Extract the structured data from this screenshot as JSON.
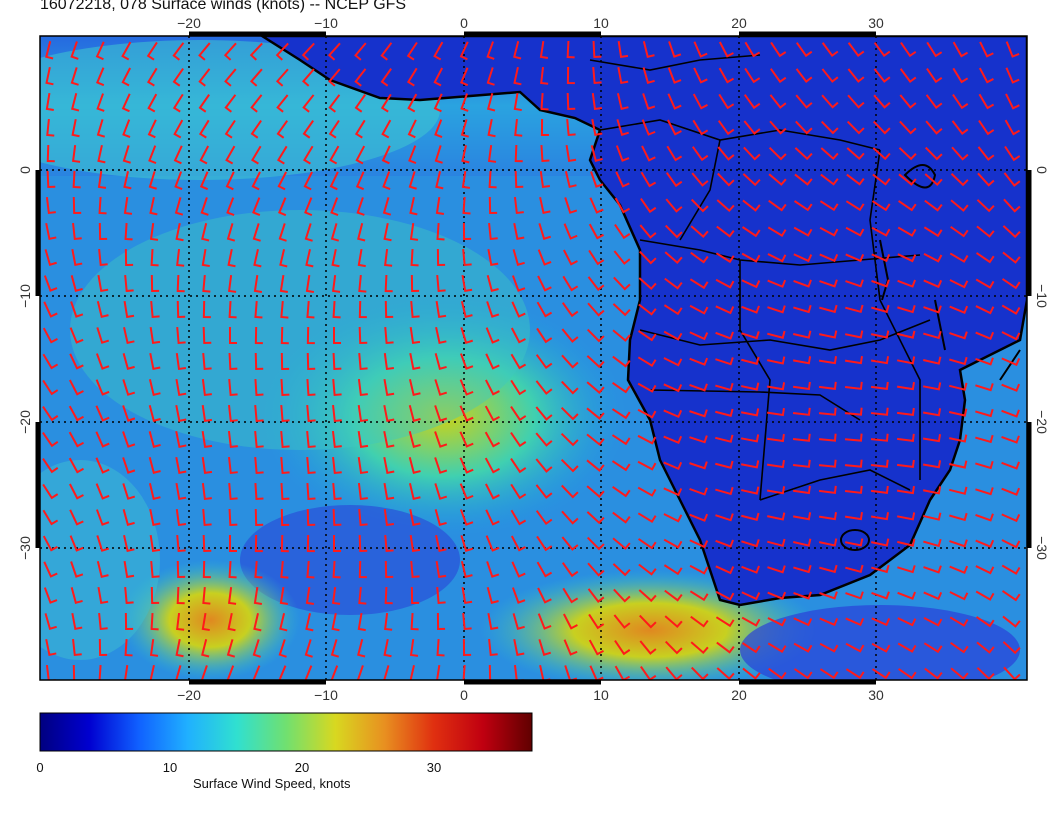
{
  "title": "16072218, 078 Surface winds (knots) -- NCEP GFS",
  "colors": {
    "barb": "#ff1a1a",
    "coast": "#000000",
    "ocean_low": "#1a2fd0",
    "ocean_mid": "#2ec8d8",
    "ocean_high": "#d6d01a",
    "land": "#1228c8"
  },
  "map": {
    "lon_ticks_top": [
      "−20",
      "−10",
      "0",
      "10",
      "20",
      "30"
    ],
    "lon_ticks_bottom": [
      "−20",
      "−10",
      "0",
      "10",
      "20",
      "30"
    ],
    "lat_ticks_left": [
      "0",
      "−10",
      "−20",
      "−30"
    ],
    "lat_ticks_right": [
      "0",
      "−10",
      "−20",
      "−30"
    ],
    "lon_range": [
      -31,
      40
    ],
    "lat_range": [
      -40,
      10
    ],
    "gridlines": "dotted",
    "layers": [
      "surface wind speed shading",
      "wind barbs (red)",
      "coastlines and country borders"
    ],
    "regions": [
      "South Atlantic Ocean",
      "Africa"
    ]
  },
  "colorbar": {
    "tick_labels": [
      "0",
      "10",
      "20",
      "30"
    ],
    "range": [
      0,
      38
    ],
    "caption": "Surface Wind Speed, knots",
    "colormap": [
      "#000080",
      "#0000d0",
      "#1060ff",
      "#20b0ff",
      "#30e0d0",
      "#70e070",
      "#d8d820",
      "#e89020",
      "#e03010",
      "#c00010",
      "#600000"
    ]
  }
}
